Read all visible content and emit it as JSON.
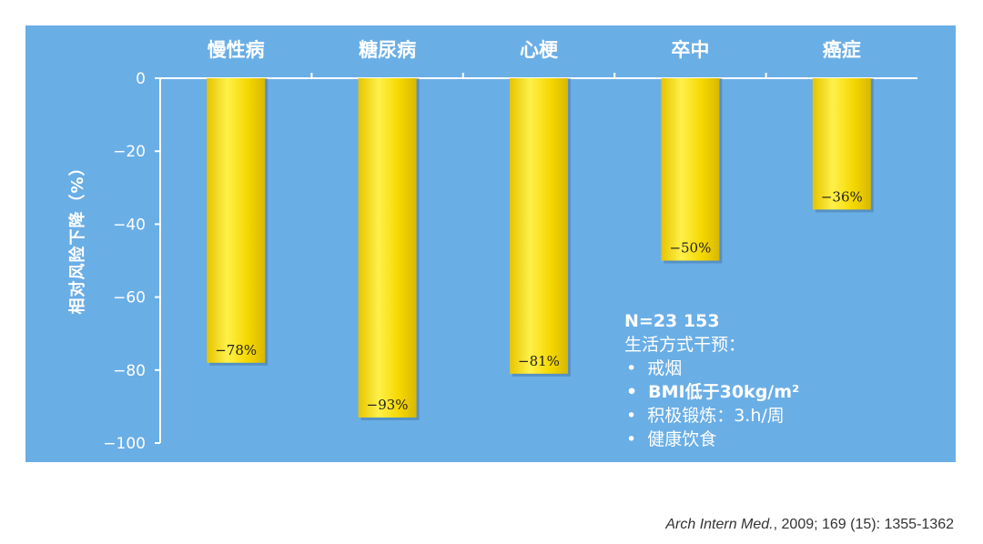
{
  "chart_data": {
    "type": "bar",
    "categories": [
      "慢性病",
      "糖尿病",
      "心梗",
      "卒中",
      "癌症"
    ],
    "values": [
      -78,
      -93,
      -81,
      -50,
      -36
    ],
    "value_labels": [
      "−78%",
      "−93%",
      "−81%",
      "−50%",
      "−36%"
    ],
    "ylabel": "相对风险下降（%）",
    "ylim": [
      -100,
      0
    ],
    "yticks": [
      0,
      -20,
      -40,
      -60,
      -80,
      -100
    ],
    "ytick_labels": [
      "0",
      "−20",
      "−40",
      "−60",
      "−80",
      "−100"
    ],
    "grid": false,
    "bar_color": "#f5d800",
    "background_color": "#6aaee6"
  },
  "note": {
    "title": "N=23 153",
    "subtitle": "生活方式干预：",
    "items": [
      "戒烟",
      "BMI低于30kg/m²",
      "积极锻炼：3.h/周",
      "健康饮食"
    ]
  },
  "citation": {
    "journal": "Arch Intern Med.",
    "rest": ", 2009; 169 (15): 1355-1362"
  }
}
